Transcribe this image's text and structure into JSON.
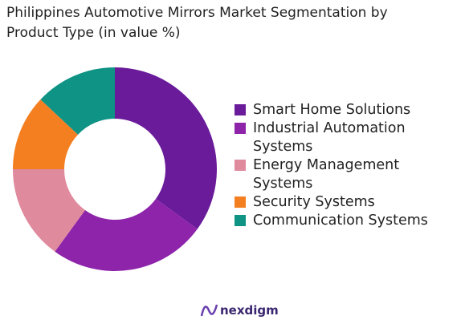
{
  "chart_data": {
    "type": "donut",
    "title": "Philippines Automotive Mirrors Market Segmentation by Product Type (in value %)",
    "categories": [
      "Smart Home Solutions",
      "Industrial Automation Systems",
      "Energy Management Systems",
      "Security Systems",
      "Communication Systems"
    ],
    "values": [
      35,
      25,
      15,
      12,
      13
    ],
    "colors": [
      "#6a1b9a",
      "#8e24aa",
      "#e08a9e",
      "#f47f20",
      "#0e9384"
    ],
    "legend": "right"
  },
  "footer": {
    "brand": "nexdigm"
  }
}
